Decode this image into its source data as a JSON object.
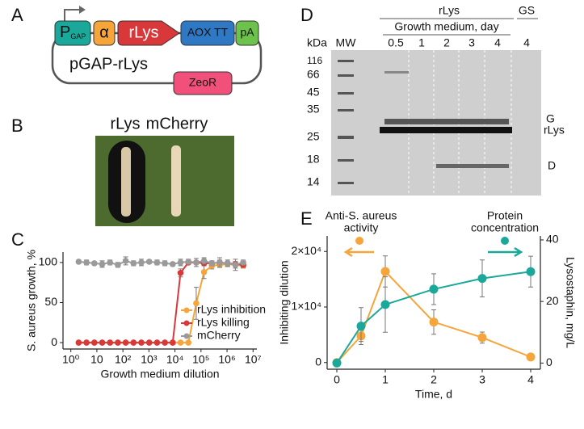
{
  "panel_letters": [
    "A",
    "B",
    "C",
    "D",
    "E"
  ],
  "plasmid": {
    "promoter": "P",
    "promoter_sub": "GAP",
    "signal": "α",
    "gene": "rLys",
    "terminator": "AOX TT",
    "polya": "pA",
    "name": "pGAP-rLys",
    "marker": "ZeoR"
  },
  "plate": {
    "labels": [
      "rLys",
      "mCherry"
    ]
  },
  "gel": {
    "unit": "kDa",
    "ladder": "MW",
    "markers": [
      "116",
      "66",
      "45",
      "35",
      "25",
      "18",
      "14"
    ],
    "group": "rLys",
    "subtitle": "Growth medium, day",
    "lanes": [
      "0.5",
      "1",
      "2",
      "3",
      "4"
    ],
    "control": "GS",
    "control_lane": "4",
    "band_labels": [
      "G",
      "rLys",
      "D"
    ]
  },
  "chart_data": [
    {
      "type": "line",
      "log_x": true,
      "x": [
        2,
        4,
        8,
        16,
        32,
        64,
        128,
        256,
        512,
        1024,
        2048,
        4096,
        8192,
        16384,
        32768,
        65536,
        131072,
        262144,
        524288,
        1048576,
        2097152,
        4194304
      ],
      "xlim": [
        0.5,
        14000000
      ],
      "xticks": [
        {
          "value": 1,
          "label": "10⁰"
        },
        10,
        {
          "value": 100,
          "label": "10²"
        },
        {
          "value": 1000,
          "label": "10³"
        },
        {
          "value": 10000,
          "label": "10⁴"
        },
        {
          "value": 100000,
          "label": "10⁵"
        },
        {
          "value": 1000000,
          "label": "10⁶"
        },
        {
          "value": 10000000,
          "label": "10⁷"
        }
      ],
      "ylim": [
        -8,
        113
      ],
      "yticks": [
        0,
        50,
        100
      ],
      "x_label": "Growth medium dilution",
      "y_label": "S. aureus growth, %",
      "legend": "right",
      "series": [
        {
          "name": "rLys inhibition",
          "color": "#f5a53a",
          "values": [
            0,
            0,
            0,
            0,
            0,
            0,
            0,
            0,
            0,
            0,
            0,
            0,
            0,
            0,
            0,
            49,
            88,
            96,
            97,
            98,
            97,
            96
          ],
          "errors": [
            0,
            0,
            0,
            0,
            0,
            0,
            0,
            0,
            0,
            0,
            0,
            0,
            0,
            0,
            0,
            20,
            8,
            4,
            3,
            3,
            4,
            3
          ]
        },
        {
          "name": "rLys killing",
          "color": "#d9383a",
          "values": [
            0,
            0,
            0,
            0,
            0,
            0,
            0,
            0,
            0,
            0,
            0,
            0,
            0,
            87,
            100,
            100,
            99,
            99,
            100,
            99,
            98,
            97
          ],
          "errors": [
            0,
            0,
            0,
            0,
            0,
            0,
            0,
            0,
            0,
            0,
            0,
            0,
            0,
            5,
            2,
            2,
            3,
            2,
            3,
            2,
            3,
            3
          ]
        },
        {
          "name": "mCherry",
          "color": "#9a9a9a",
          "values": [
            101,
            100,
            99,
            98,
            100,
            97,
            102,
            99,
            100,
            101,
            100,
            99,
            98,
            100,
            101,
            100,
            102,
            99,
            100,
            99,
            97,
            100
          ],
          "errors": [
            2,
            3,
            2,
            4,
            3,
            3,
            5,
            3,
            4,
            2,
            3,
            3,
            2,
            4,
            3,
            5,
            4,
            3,
            6,
            4,
            7,
            3
          ]
        }
      ]
    },
    {
      "type": "line",
      "x": [
        0,
        0.5,
        1,
        2,
        3,
        4
      ],
      "xlim": [
        -0.2,
        4.2
      ],
      "xticks": [
        0,
        1,
        2,
        3,
        4
      ],
      "ylim": [
        -1200,
        22800
      ],
      "yticks": [
        0,
        {
          "value": 10000,
          "label": "1×10⁴"
        },
        {
          "value": 20000,
          "label": "2×10⁴"
        }
      ],
      "y2lim": [
        -2,
        41.3
      ],
      "y2ticks": [
        0,
        20,
        40
      ],
      "x_label": "Time, d",
      "y_label": "Inhibiting dilution",
      "y2_label": "Lysostaphin, mg/L",
      "annotations": [
        {
          "lines": [
            "Anti-S. aureus",
            "activity"
          ],
          "color": "#f5a53a"
        },
        {
          "lines": [
            "Protein",
            "concentration"
          ],
          "color": "#1aa89a"
        }
      ],
      "series": [
        {
          "color": "#f5a53a",
          "values": [
            0,
            4800,
            16400,
            7300,
            4500,
            1000
          ],
          "errors": [
            0,
            1000,
            2800,
            2200,
            1000,
            400
          ]
        },
        {
          "color": "#1aa89a",
          "axis": "y2",
          "values": [
            0,
            12,
            19,
            24,
            27.5,
            29.7
          ],
          "errors": [
            0,
            6,
            9,
            5,
            6,
            5
          ]
        }
      ]
    }
  ]
}
